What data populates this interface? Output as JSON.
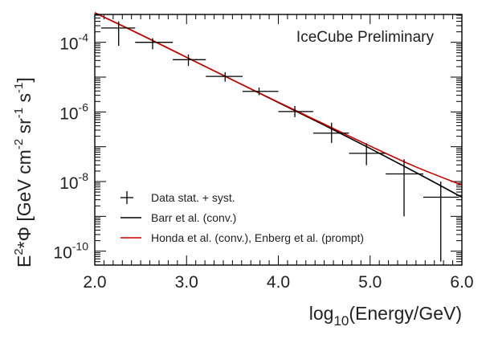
{
  "chart_data": {
    "type": "scatter",
    "annotation": "IceCube Preliminary",
    "xlabel": {
      "main": "log",
      "sub": "10",
      "rest": "(Energy/GeV)"
    },
    "ylabel": {
      "a": "E",
      "a_sup": "2",
      "b": "*Φ [GeV cm",
      "b_sup": "-2",
      "c": " sr",
      "c_sup": "-1",
      "d": " s",
      "d_sup": "-1",
      "e": "]"
    },
    "xlim": [
      2.0,
      6.0
    ],
    "ylim_log10": [
      -10.4,
      -3.2
    ],
    "y_scale": "log",
    "x_ticks": [
      {
        "value": 2.0,
        "label": "2.0"
      },
      {
        "value": 3.0,
        "label": "3.0"
      },
      {
        "value": 4.0,
        "label": "4.0"
      },
      {
        "value": 5.0,
        "label": "5.0"
      },
      {
        "value": 6.0,
        "label": "6.0"
      }
    ],
    "y_ticks": [
      {
        "exp": -4,
        "base": "10",
        "sup": "-4"
      },
      {
        "exp": -6,
        "base": "10",
        "sup": "-6"
      },
      {
        "exp": -8,
        "base": "10",
        "sup": "-8"
      },
      {
        "exp": -10,
        "base": "10",
        "sup": "-10"
      }
    ],
    "legend": {
      "placement": "bottom-left",
      "entries": [
        {
          "label": "Data stat. + syst.",
          "style": "cross",
          "color": "#000000"
        },
        {
          "label": "Barr et al. (conv.)",
          "style": "line",
          "color": "#000000"
        },
        {
          "label": "Honda et al. (conv.), Enberg et al. (prompt)",
          "style": "line",
          "color": "#cc0000"
        }
      ]
    },
    "data_points": [
      {
        "x": 2.26,
        "x_lo": 2.07,
        "x_hi": 2.44,
        "y_log10": -3.59,
        "y_lo_log10": -4.1,
        "y_hi_log10": -3.4
      },
      {
        "x": 2.63,
        "x_lo": 2.44,
        "x_hi": 2.85,
        "y_log10": -4.0,
        "y_lo_log10": -4.2,
        "y_hi_log10": -3.88
      },
      {
        "x": 3.02,
        "x_lo": 2.85,
        "x_hi": 3.21,
        "y_log10": -4.5,
        "y_lo_log10": -4.68,
        "y_hi_log10": -4.35
      },
      {
        "x": 3.42,
        "x_lo": 3.21,
        "x_hi": 3.61,
        "y_log10": -4.98,
        "y_lo_log10": -5.13,
        "y_hi_log10": -4.86
      },
      {
        "x": 3.79,
        "x_lo": 3.61,
        "x_hi": 4.0,
        "y_log10": -5.41,
        "y_lo_log10": -5.52,
        "y_hi_log10": -5.3
      },
      {
        "x": 4.18,
        "x_lo": 4.0,
        "x_hi": 4.38,
        "y_log10": -5.99,
        "y_lo_log10": -6.15,
        "y_hi_log10": -5.83
      },
      {
        "x": 4.58,
        "x_lo": 4.38,
        "x_hi": 4.77,
        "y_log10": -6.61,
        "y_lo_log10": -6.89,
        "y_hi_log10": -6.31
      },
      {
        "x": 4.96,
        "x_lo": 4.77,
        "x_hi": 5.17,
        "y_log10": -7.19,
        "y_lo_log10": -7.53,
        "y_hi_log10": -6.9
      },
      {
        "x": 5.37,
        "x_lo": 5.17,
        "x_hi": 5.58,
        "y_log10": -7.78,
        "y_lo_log10": -9.0,
        "y_hi_log10": -7.36
      },
      {
        "x": 5.77,
        "x_lo": 5.58,
        "x_hi": 5.97,
        "y_log10": -8.45,
        "y_lo_log10": -10.3,
        "y_hi_log10": -8.0
      }
    ],
    "series": [
      {
        "style": "line",
        "color": "#000000",
        "x": [
          2.0,
          2.5,
          3.0,
          3.5,
          4.0,
          4.5,
          5.0,
          5.5,
          6.0
        ],
        "y_log10": [
          -3.15,
          -3.78,
          -4.43,
          -5.08,
          -5.73,
          -6.38,
          -7.05,
          -7.74,
          -8.45
        ]
      },
      {
        "style": "line",
        "color": "#cc0000",
        "x": [
          2.0,
          2.5,
          3.0,
          3.5,
          4.0,
          4.5,
          5.0,
          5.5,
          6.0
        ],
        "y_log10": [
          -3.15,
          -3.78,
          -4.43,
          -5.08,
          -5.72,
          -6.35,
          -6.98,
          -7.58,
          -8.1
        ]
      }
    ]
  }
}
